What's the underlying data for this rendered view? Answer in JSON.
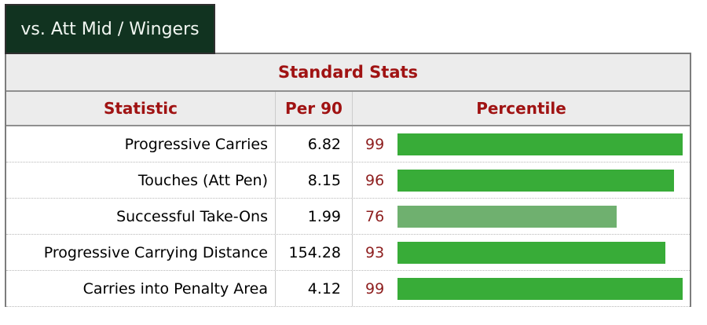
{
  "tab": {
    "label": "vs. Att Mid / Wingers"
  },
  "table": {
    "title": "Standard Stats",
    "columns": {
      "statistic": "Statistic",
      "per90": "Per 90",
      "percentile": "Percentile"
    },
    "rows": [
      {
        "statistic": "Progressive Carries",
        "per90": "6.82",
        "percentile": 99,
        "bar_color": "#38ac38"
      },
      {
        "statistic": "Touches (Att Pen)",
        "per90": "8.15",
        "percentile": 96,
        "bar_color": "#38ac38"
      },
      {
        "statistic": "Successful Take-Ons",
        "per90": "1.99",
        "percentile": 76,
        "bar_color": "#6fb06f"
      },
      {
        "statistic": "Progressive Carrying Distance",
        "per90": "154.28",
        "percentile": 93,
        "bar_color": "#38ac38"
      },
      {
        "statistic": "Carries into Penalty Area",
        "per90": "4.12",
        "percentile": 99,
        "bar_color": "#38ac38"
      }
    ]
  },
  "chart_data": {
    "type": "bar",
    "orientation": "horizontal",
    "title": "Standard Stats",
    "categories": [
      "Progressive Carries",
      "Touches (Att Pen)",
      "Successful Take-Ons",
      "Progressive Carrying Distance",
      "Carries into Penalty Area"
    ],
    "series": [
      {
        "name": "Per 90",
        "values": [
          6.82,
          8.15,
          1.99,
          154.28,
          4.12
        ]
      },
      {
        "name": "Percentile",
        "values": [
          99,
          96,
          76,
          93,
          99
        ]
      }
    ],
    "xlim": [
      0,
      100
    ],
    "bar_colors": [
      "#38ac38",
      "#38ac38",
      "#6fb06f",
      "#38ac38",
      "#38ac38"
    ],
    "legend_position": "none",
    "grid": false
  },
  "colors": {
    "tab_bg": "#113320",
    "tab_border": "#2f2f2f",
    "tab_text": "#f2f7f2",
    "table_border": "#7c7c7c",
    "header_bg": "#ececec",
    "header_divider": "#8f8f8f",
    "column_divider": "#cccccc",
    "row_divider": "#b8b8b8",
    "header_text_red": "#a01313",
    "percentile_text_red": "#8e1f1f",
    "stat_text": "#000000",
    "bar_green": "#38ac38",
    "bar_green_muted": "#6fb06f",
    "page_bg": "#ffffff"
  }
}
